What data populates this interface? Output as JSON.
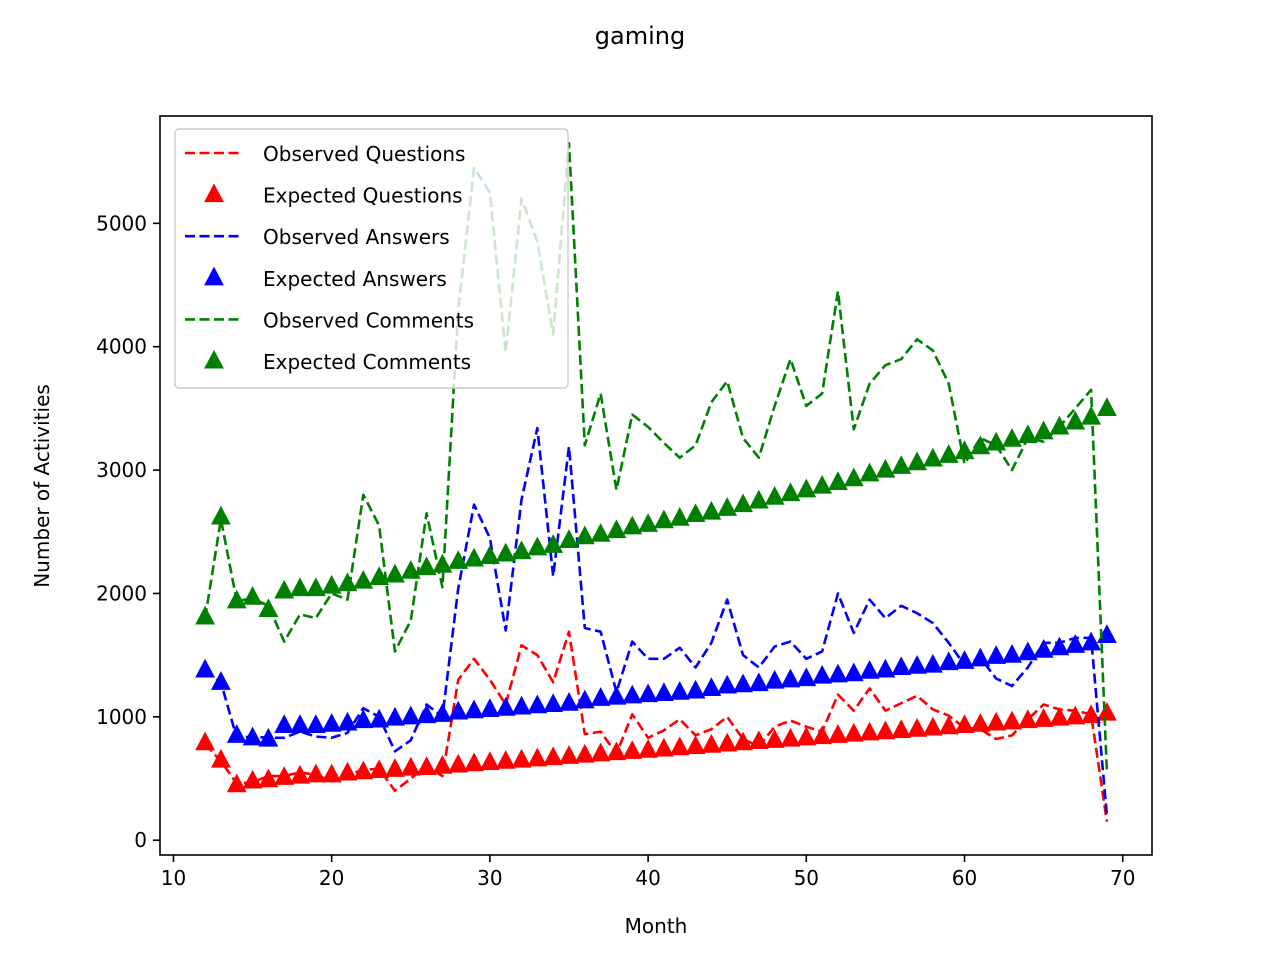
{
  "chart_data": {
    "type": "line",
    "title": "gaming",
    "xlabel": "Month",
    "ylabel": "Number of Activities",
    "xlim": [
      9.15,
      71.85
    ],
    "ylim": [
      -120,
      5870
    ],
    "xticks": [
      10,
      20,
      30,
      40,
      50,
      60,
      70
    ],
    "yticks": [
      0,
      1000,
      2000,
      3000,
      4000,
      5000
    ],
    "grid": false,
    "legend_position": "top-left",
    "x": [
      12,
      13,
      14,
      15,
      16,
      17,
      18,
      19,
      20,
      21,
      22,
      23,
      24,
      25,
      26,
      27,
      28,
      29,
      30,
      31,
      32,
      33,
      34,
      35,
      36,
      37,
      38,
      39,
      40,
      41,
      42,
      43,
      44,
      45,
      46,
      47,
      48,
      49,
      50,
      51,
      52,
      53,
      54,
      55,
      56,
      57,
      58,
      59,
      60,
      61,
      62,
      63,
      64,
      65,
      66,
      67,
      68,
      69
    ],
    "series": [
      {
        "name": "Observed Questions",
        "style": "dashed",
        "color": "#ff0000",
        "values": [
          780,
          640,
          460,
          470,
          520,
          520,
          550,
          530,
          480,
          530,
          570,
          580,
          400,
          500,
          600,
          520,
          1300,
          1470,
          1300,
          1100,
          1580,
          1500,
          1280,
          1690,
          860,
          880,
          700,
          1020,
          830,
          890,
          980,
          850,
          900,
          1000,
          820,
          760,
          920,
          970,
          920,
          880,
          1180,
          1050,
          1230,
          1050,
          1110,
          1170,
          1060,
          1010,
          910,
          900,
          820,
          850,
          980,
          1100,
          1060,
          1050,
          1020,
          150
        ],
        "color_key": "red"
      },
      {
        "name": "Expected Questions",
        "style": "marker",
        "color": "#ff0000",
        "values": [
          790,
          650,
          450,
          480,
          490,
          510,
          520,
          530,
          530,
          545,
          555,
          565,
          575,
          585,
          590,
          600,
          610,
          620,
          630,
          640,
          650,
          660,
          670,
          680,
          690,
          700,
          710,
          720,
          730,
          740,
          750,
          760,
          770,
          780,
          790,
          800,
          810,
          820,
          830,
          840,
          850,
          860,
          870,
          880,
          890,
          900,
          910,
          920,
          930,
          940,
          950,
          960,
          970,
          980,
          990,
          1000,
          1010,
          1030
        ]
      },
      {
        "name": "Observed Answers",
        "style": "dashed",
        "color": "#0000ff",
        "values": [
          1380,
          1280,
          830,
          840,
          830,
          830,
          880,
          840,
          830,
          870,
          1070,
          1000,
          720,
          810,
          1100,
          1000,
          2040,
          2720,
          2450,
          1700,
          2760,
          3340,
          2140,
          3190,
          1720,
          1690,
          1200,
          1610,
          1470,
          1470,
          1560,
          1400,
          1600,
          1950,
          1500,
          1400,
          1570,
          1610,
          1470,
          1530,
          2000,
          1680,
          1950,
          1800,
          1900,
          1840,
          1760,
          1600,
          1420,
          1480,
          1310,
          1250,
          1400,
          1600,
          1600,
          1640,
          1640,
          200
        ]
      },
      {
        "name": "Expected Answers",
        "style": "marker",
        "color": "#0000ff",
        "values": [
          1380,
          1280,
          850,
          830,
          820,
          930,
          930,
          930,
          940,
          950,
          970,
          975,
          990,
          1000,
          1010,
          1020,
          1040,
          1050,
          1060,
          1070,
          1080,
          1090,
          1100,
          1110,
          1130,
          1150,
          1160,
          1170,
          1180,
          1190,
          1200,
          1210,
          1230,
          1250,
          1260,
          1270,
          1290,
          1300,
          1310,
          1330,
          1340,
          1350,
          1370,
          1380,
          1400,
          1410,
          1420,
          1440,
          1450,
          1470,
          1490,
          1500,
          1520,
          1540,
          1560,
          1580,
          1600,
          1660
        ]
      },
      {
        "name": "Observed Comments",
        "style": "dashed",
        "color": "#008000",
        "values": [
          1800,
          2600,
          1940,
          1960,
          1900,
          1610,
          1830,
          1800,
          2000,
          1950,
          2800,
          2550,
          1530,
          1780,
          2650,
          2050,
          4300,
          5450,
          5250,
          3950,
          5200,
          4850,
          4100,
          5650,
          3200,
          3620,
          2840,
          3450,
          3350,
          3220,
          3100,
          3200,
          3550,
          3720,
          3260,
          3100,
          3520,
          3900,
          3520,
          3620,
          4450,
          3330,
          3700,
          3850,
          3900,
          4060,
          3970,
          3700,
          3050,
          3260,
          3200,
          3000,
          3260,
          3230,
          3350,
          3500,
          3650,
          550
        ]
      },
      {
        "name": "Expected Comments",
        "style": "marker",
        "color": "#008000",
        "values": [
          1810,
          2620,
          1940,
          1970,
          1870,
          2020,
          2040,
          2040,
          2060,
          2080,
          2100,
          2130,
          2150,
          2180,
          2210,
          2230,
          2260,
          2280,
          2300,
          2320,
          2340,
          2370,
          2390,
          2430,
          2460,
          2480,
          2510,
          2540,
          2560,
          2590,
          2610,
          2640,
          2660,
          2690,
          2720,
          2750,
          2780,
          2810,
          2840,
          2870,
          2900,
          2930,
          2970,
          3000,
          3030,
          3060,
          3090,
          3120,
          3150,
          3190,
          3220,
          3250,
          3280,
          3310,
          3350,
          3390,
          3430,
          3500
        ]
      }
    ]
  }
}
